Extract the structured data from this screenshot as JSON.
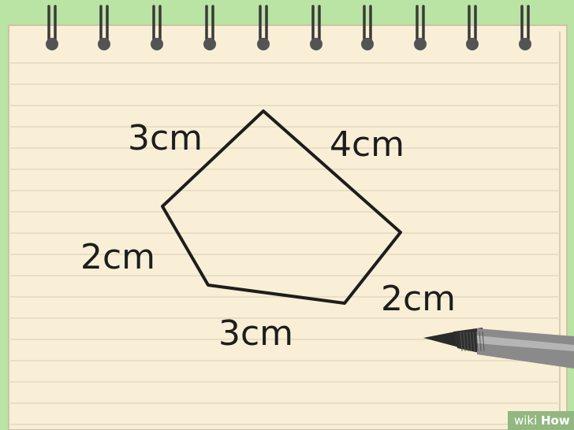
{
  "colors": {
    "background": "#b9e4a3",
    "paper": "#f8efd6",
    "ruled_line": "#e3d8c0",
    "ink": "#1d1d1d",
    "ring": "#545454"
  },
  "shape": {
    "kind": "pentagon",
    "labels": {
      "top_left_side": "3cm",
      "top_right_side": "4cm",
      "left_side": "2cm",
      "bottom_side": "3cm",
      "bottom_right_side": "2cm"
    }
  },
  "watermark": {
    "wiki": "wiki",
    "how": "How"
  }
}
